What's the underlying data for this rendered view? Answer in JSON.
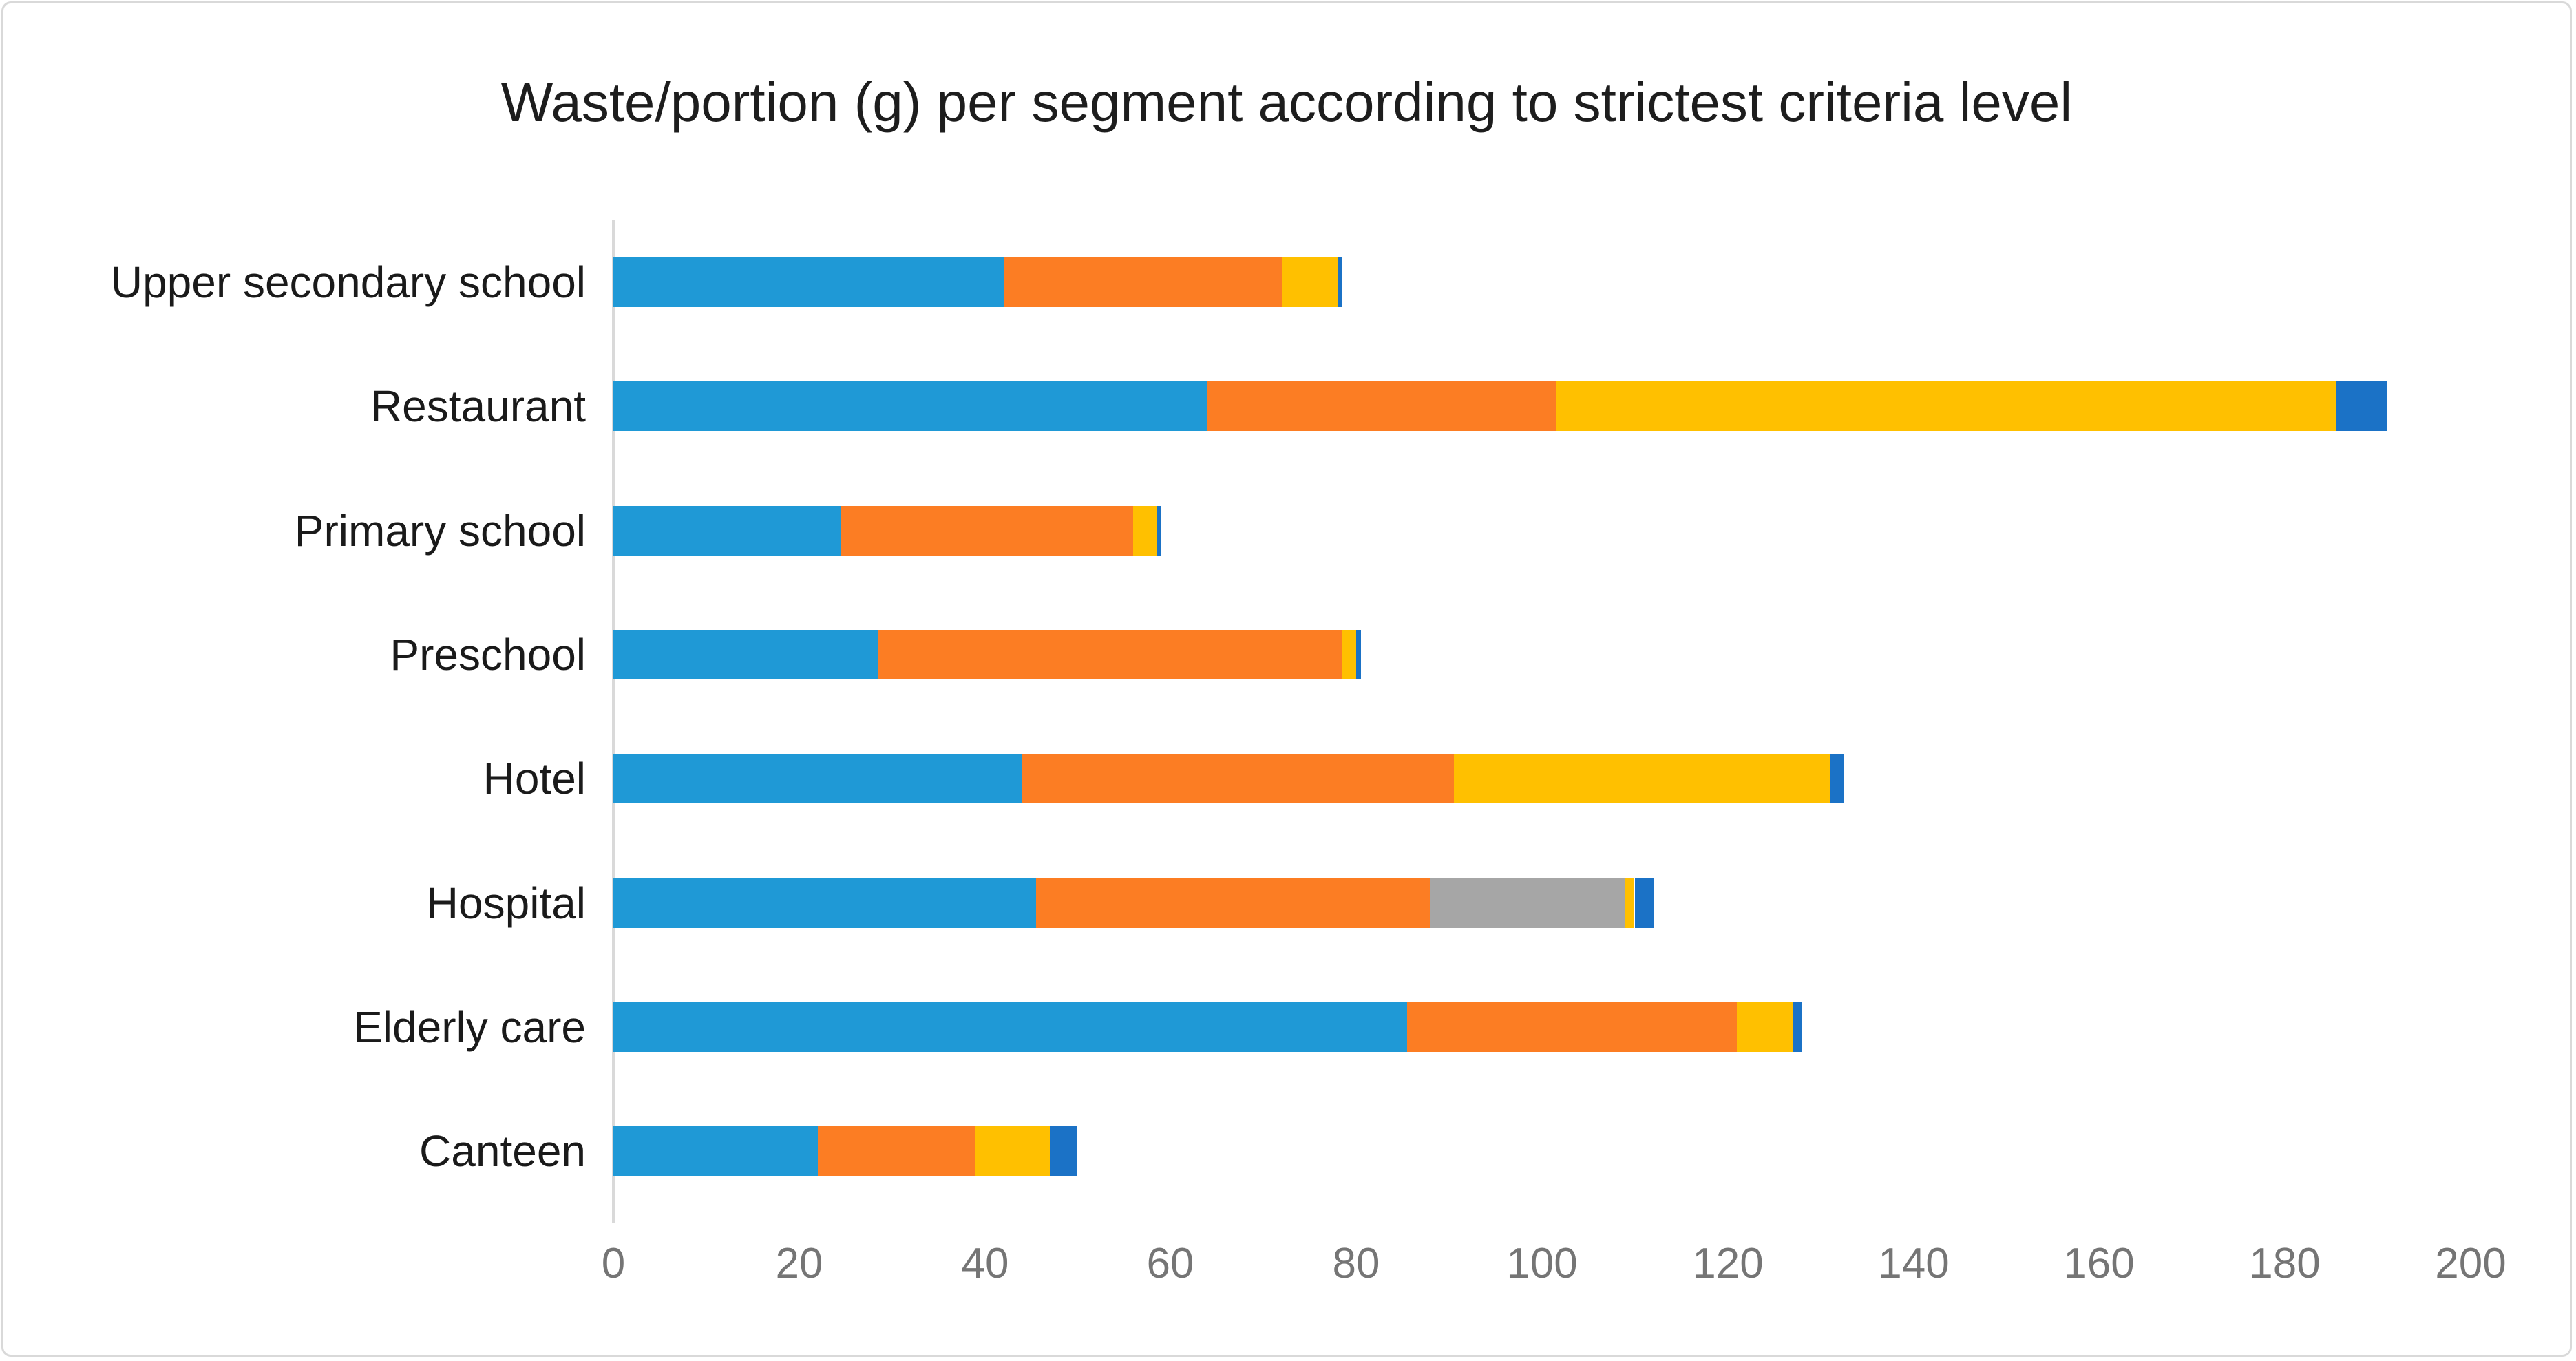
{
  "chart_data": {
    "type": "bar",
    "orientation": "horizontal",
    "stacked": true,
    "title": "Waste/portion (g) per segment according to strictest criteria level",
    "categories": [
      "Upper secondary school",
      "Restaurant",
      "Primary school",
      "Preschool",
      "Hotel",
      "Hospital",
      "Elderly care",
      "Canteen"
    ],
    "series": [
      {
        "name": "blue-segment",
        "color": "#1f99d6",
        "values": [
          42,
          64,
          24.5,
          28.5,
          44,
          45.5,
          85.5,
          22
        ]
      },
      {
        "name": "orange-segment",
        "color": "#fc7d23",
        "values": [
          30,
          37.5,
          31.5,
          50,
          46.5,
          42.5,
          35.5,
          17
        ]
      },
      {
        "name": "gray-segment",
        "color": "#a6a6a6",
        "values": [
          0,
          0,
          0,
          0,
          0,
          21,
          0,
          0
        ]
      },
      {
        "name": "yellow-segment",
        "color": "#ffc000",
        "values": [
          6,
          84,
          2.5,
          1.5,
          40.5,
          1,
          6,
          8
        ]
      },
      {
        "name": "dark-blue-segment",
        "color": "#1b72c6",
        "values": [
          0.5,
          5.5,
          0.5,
          0.5,
          1.5,
          2,
          1,
          3
        ]
      }
    ],
    "totals": [
      78.5,
      191,
      59,
      80.5,
      132.5,
      112,
      128,
      50
    ],
    "x_ticks": [
      0,
      20,
      40,
      60,
      80,
      100,
      120,
      140,
      160,
      180,
      200
    ],
    "xlim": [
      0,
      200
    ],
    "xlabel": "",
    "ylabel": "",
    "legend": "none",
    "gridlines": "none",
    "colors": {
      "axis_line": "#d9d9d9",
      "tick_text": "#757575",
      "label_text": "#1a1a1a",
      "title_text": "#1d1d1d",
      "frame_border": "#d9d9d9"
    }
  }
}
